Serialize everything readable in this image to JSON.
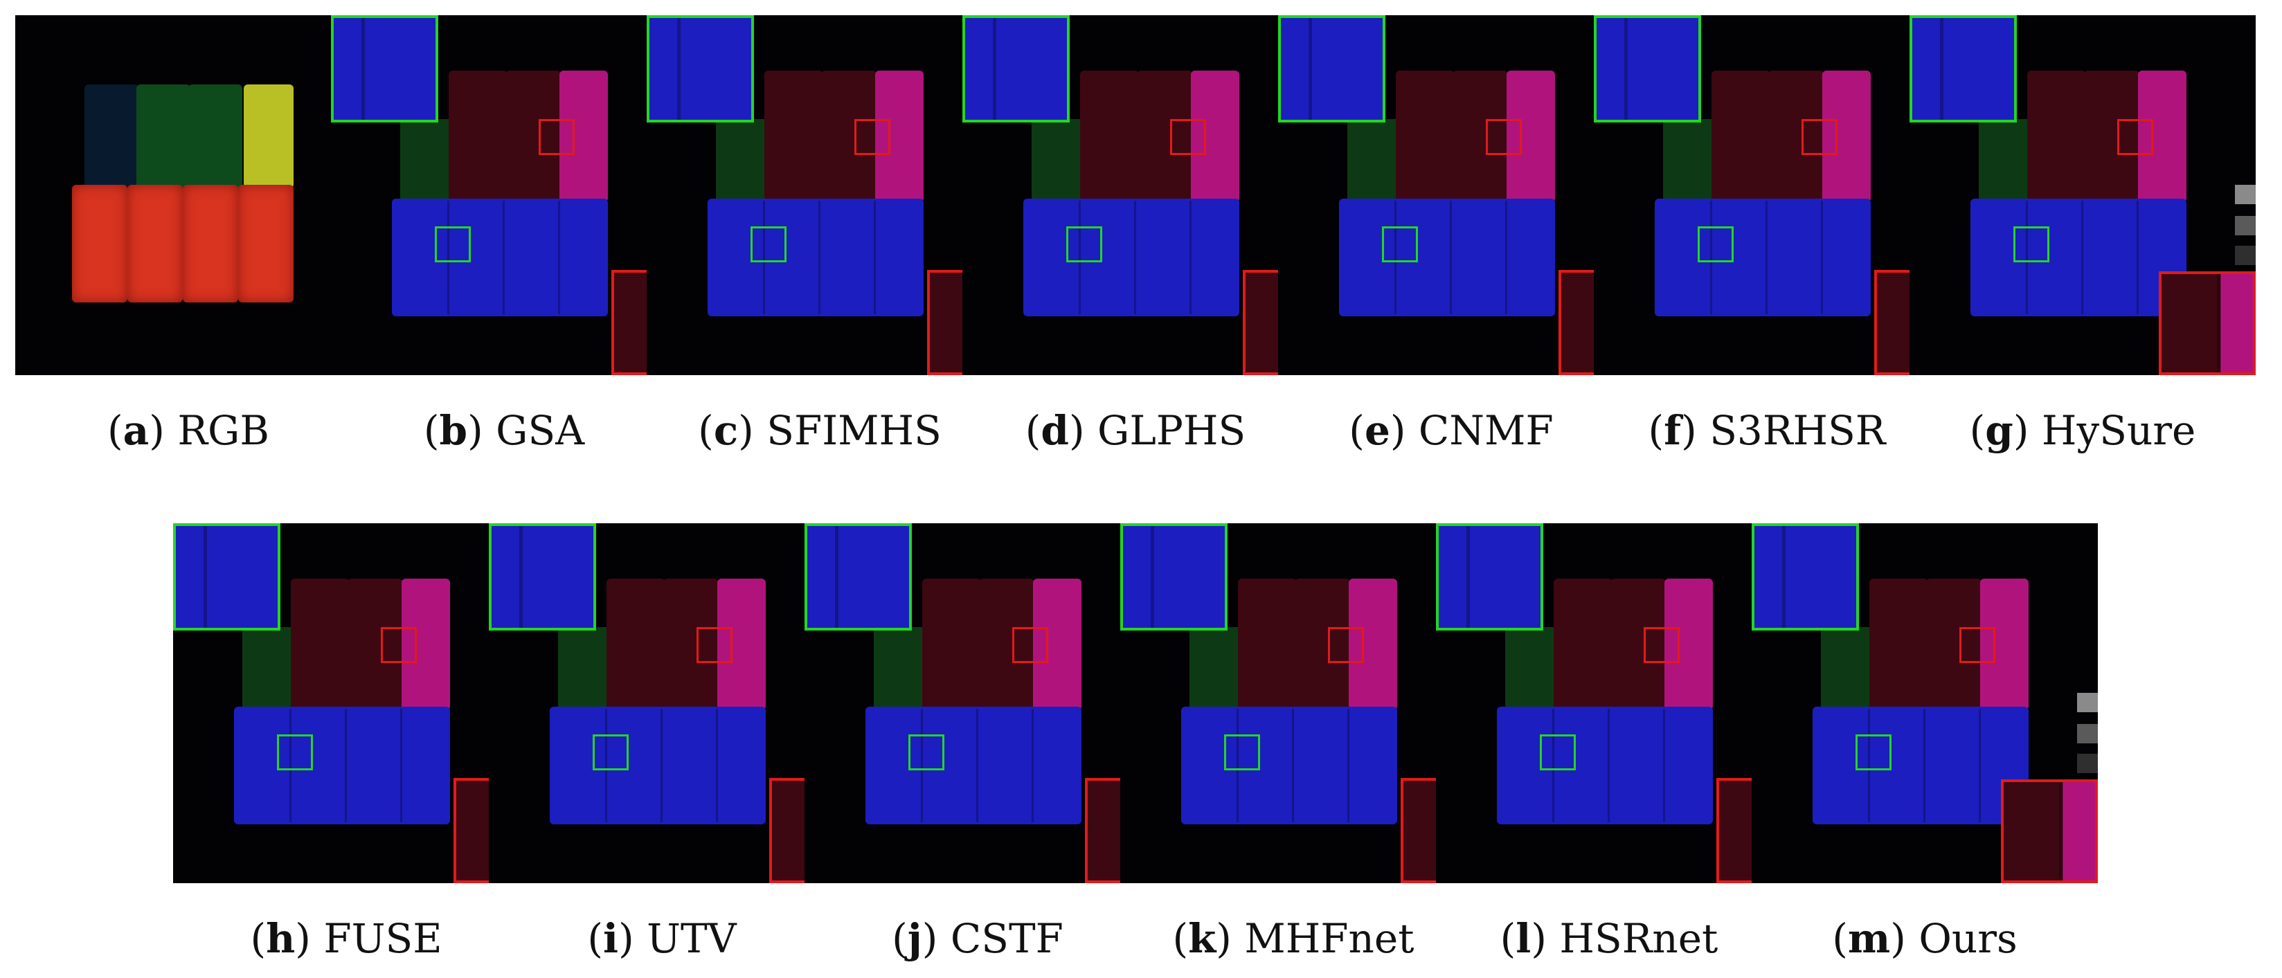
{
  "figure": {
    "panels": [
      {
        "id": "a",
        "name": "RGB",
        "type": "rgb"
      },
      {
        "id": "b",
        "name": "GSA",
        "type": "result"
      },
      {
        "id": "c",
        "name": "SFIMHS",
        "type": "result"
      },
      {
        "id": "d",
        "name": "GLPHS",
        "type": "result"
      },
      {
        "id": "e",
        "name": "CNMF",
        "type": "result"
      },
      {
        "id": "f",
        "name": "S3RHSR",
        "type": "result"
      },
      {
        "id": "g",
        "name": "HySure",
        "type": "result-chips"
      },
      {
        "id": "h",
        "name": "FUSE",
        "type": "result"
      },
      {
        "id": "i",
        "name": "UTV",
        "type": "result"
      },
      {
        "id": "j",
        "name": "CSTF",
        "type": "result"
      },
      {
        "id": "k",
        "name": "MHFnet",
        "type": "result"
      },
      {
        "id": "l",
        "name": "HSRnet",
        "type": "result"
      },
      {
        "id": "m",
        "name": "Ours",
        "type": "result-chips"
      }
    ],
    "colors": {
      "background": "#020204",
      "green_block": "#0d3a14",
      "dark_red_block": "#3e0812",
      "magenta_block": "#b0147c",
      "blue_block": "#1c1ec0",
      "rgb_dark_blue": "#081a2e",
      "rgb_dark_green": "#0d4a1c",
      "rgb_yellow": "#b9c026",
      "rgb_red": "#d83420",
      "box_green": "#23d623",
      "box_red": "#e01b1b"
    }
  }
}
